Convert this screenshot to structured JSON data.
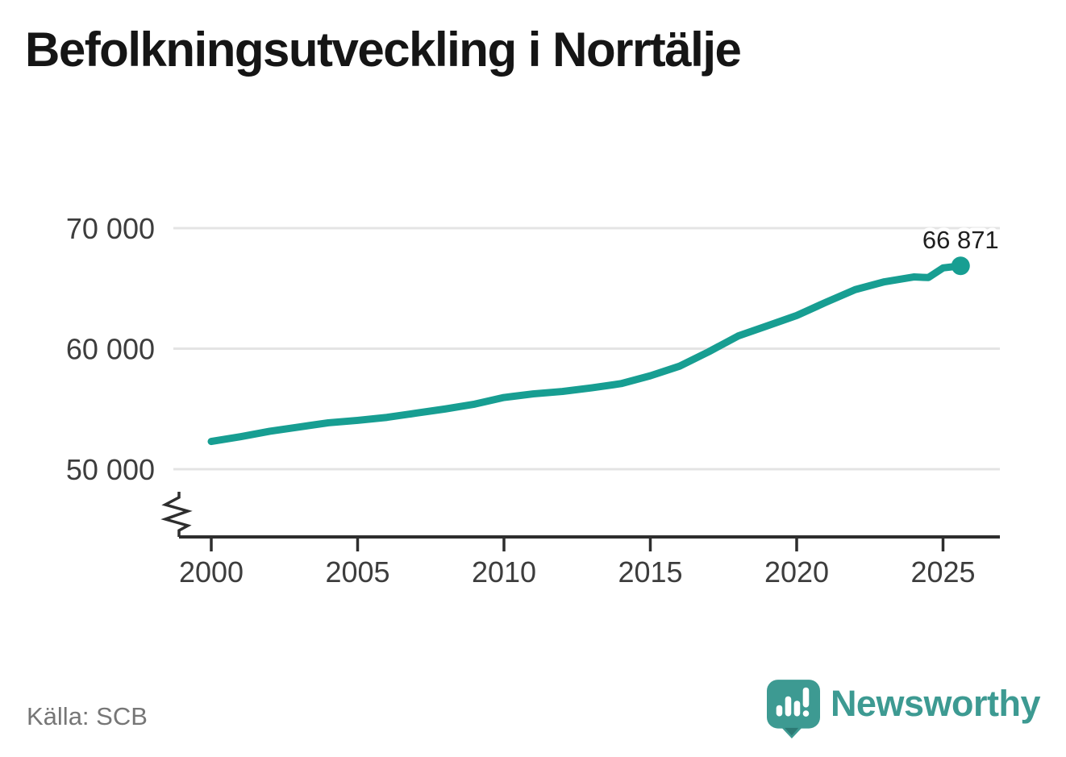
{
  "header": {
    "title": "Befolkningsutveckling i Norrtälje"
  },
  "footer": {
    "source": "Källa: SCB",
    "brand_name": "Newsworthy"
  },
  "colors": {
    "line": "#179e92",
    "marker": "#179e92",
    "grid": "#e4e4e4",
    "axis": "#2e2e2e",
    "tick_label": "#3d3d3d",
    "end_label": "#1f1f1f",
    "title_text": "#151515",
    "source_text": "#767676",
    "brand": "#3d9a92",
    "brand_tail": "#2c7a74"
  },
  "chart_data": {
    "type": "line",
    "title": "Befolkningsutveckling i Norrtälje",
    "source": "Källa: SCB",
    "xlabel": "",
    "ylabel": "",
    "grid": "horizontal-only",
    "legend": "none",
    "axis_break": true,
    "xlim": [
      1998.9,
      2026.9
    ],
    "ylim": [
      46000,
      71500
    ],
    "x_ticks": [
      {
        "value": 2000,
        "label": "2000"
      },
      {
        "value": 2005,
        "label": "2005"
      },
      {
        "value": 2010,
        "label": "2010"
      },
      {
        "value": 2015,
        "label": "2015"
      },
      {
        "value": 2020,
        "label": "2020"
      },
      {
        "value": 2025,
        "label": "2025"
      }
    ],
    "y_ticks": [
      {
        "value": 50000,
        "label": "50 000"
      },
      {
        "value": 60000,
        "label": "60 000"
      },
      {
        "value": 70000,
        "label": "70 000"
      }
    ],
    "series": [
      {
        "name": "population",
        "points": [
          [
            2000,
            52300
          ],
          [
            2001,
            52700
          ],
          [
            2002,
            53150
          ],
          [
            2003,
            53500
          ],
          [
            2004,
            53850
          ],
          [
            2005,
            54050
          ],
          [
            2006,
            54300
          ],
          [
            2007,
            54650
          ],
          [
            2008,
            55000
          ],
          [
            2009,
            55400
          ],
          [
            2010,
            55950
          ],
          [
            2011,
            56250
          ],
          [
            2012,
            56450
          ],
          [
            2013,
            56750
          ],
          [
            2014,
            57100
          ],
          [
            2015,
            57750
          ],
          [
            2016,
            58550
          ],
          [
            2017,
            59750
          ],
          [
            2018,
            61050
          ],
          [
            2019,
            61900
          ],
          [
            2020,
            62750
          ],
          [
            2021,
            63850
          ],
          [
            2022,
            64900
          ],
          [
            2023,
            65550
          ],
          [
            2024,
            65950
          ],
          [
            2024.5,
            65900
          ],
          [
            2025,
            66700
          ],
          [
            2025.6,
            66871
          ]
        ]
      }
    ],
    "end_point": {
      "x": 2025.6,
      "value": 66871,
      "label": "66 871"
    }
  }
}
